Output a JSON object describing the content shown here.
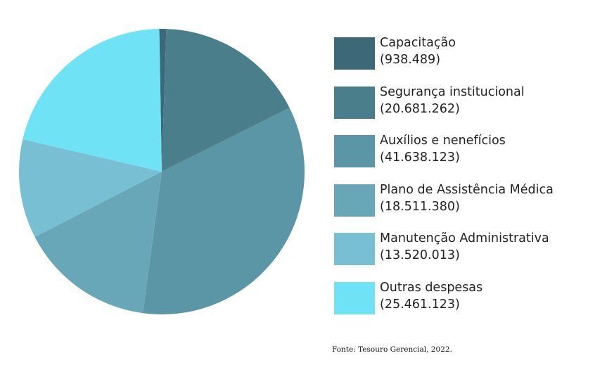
{
  "chart_data": {
    "type": "pie",
    "categories": [
      "Capacitação",
      "Segurança institucional",
      "Auxílios e nenefícios",
      "Plano de Assistência Médica",
      "Manutenção Administrativa",
      "Outras despesas"
    ],
    "values": [
      938489,
      20681262,
      41638123,
      18511380,
      13520013,
      25461123
    ],
    "value_labels": [
      "(938.489)",
      "(20.681.262)",
      "(41.638.123)",
      "(18.511.380)",
      "(13.520.013)",
      "(25.461.123)"
    ],
    "colors": [
      "#3d6878",
      "#4a7e8b",
      "#5b96a6",
      "#68a7b8",
      "#78bfd3",
      "#6fe3f5"
    ],
    "legend": "right",
    "source": "Fonte:  Tesouro Gerencial, 2022."
  }
}
